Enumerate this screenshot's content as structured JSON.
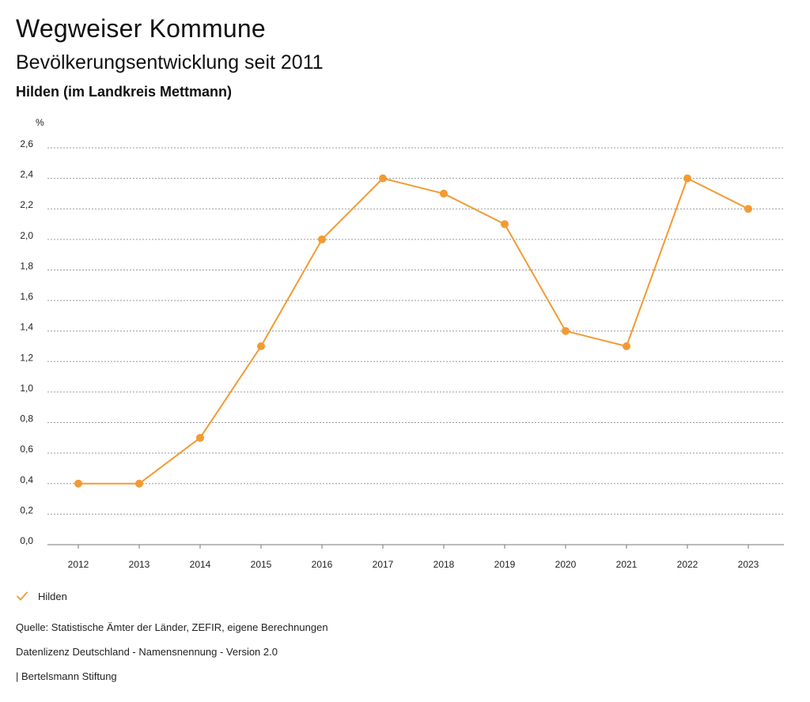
{
  "header": {
    "title": "Wegweiser Kommune",
    "subtitle": "Bevölkerungsentwicklung seit 2011",
    "region": "Hilden (im Landkreis Mettmann)"
  },
  "chart_data": {
    "type": "line",
    "title": "Bevölkerungsentwicklung seit 2011",
    "xlabel": "",
    "ylabel": "%",
    "x": [
      "2012",
      "2013",
      "2014",
      "2015",
      "2016",
      "2017",
      "2018",
      "2019",
      "2020",
      "2021",
      "2022",
      "2023"
    ],
    "series": [
      {
        "name": "Hilden",
        "color": "#f39a33",
        "values": [
          0.4,
          0.4,
          0.7,
          1.3,
          2.0,
          2.4,
          2.3,
          2.1,
          1.4,
          1.3,
          2.4,
          2.2
        ]
      }
    ],
    "ylim": [
      0,
      2.6
    ],
    "yticks": [
      "0,0",
      "0,2",
      "0,4",
      "0,6",
      "0,8",
      "1,0",
      "1,2",
      "1,4",
      "1,6",
      "1,8",
      "2,0",
      "2,2",
      "2,4",
      "2,6"
    ],
    "grid": true,
    "legend": "bottom-left"
  },
  "legend": {
    "label": "Hilden",
    "icon": "check-icon"
  },
  "footer": {
    "source": "Quelle: Statistische Ämter der Länder, ZEFIR, eigene Berechnungen",
    "license": "Datenlizenz Deutschland - Namensnennung - Version 2.0",
    "publisher": "| Bertelsmann Stiftung"
  }
}
